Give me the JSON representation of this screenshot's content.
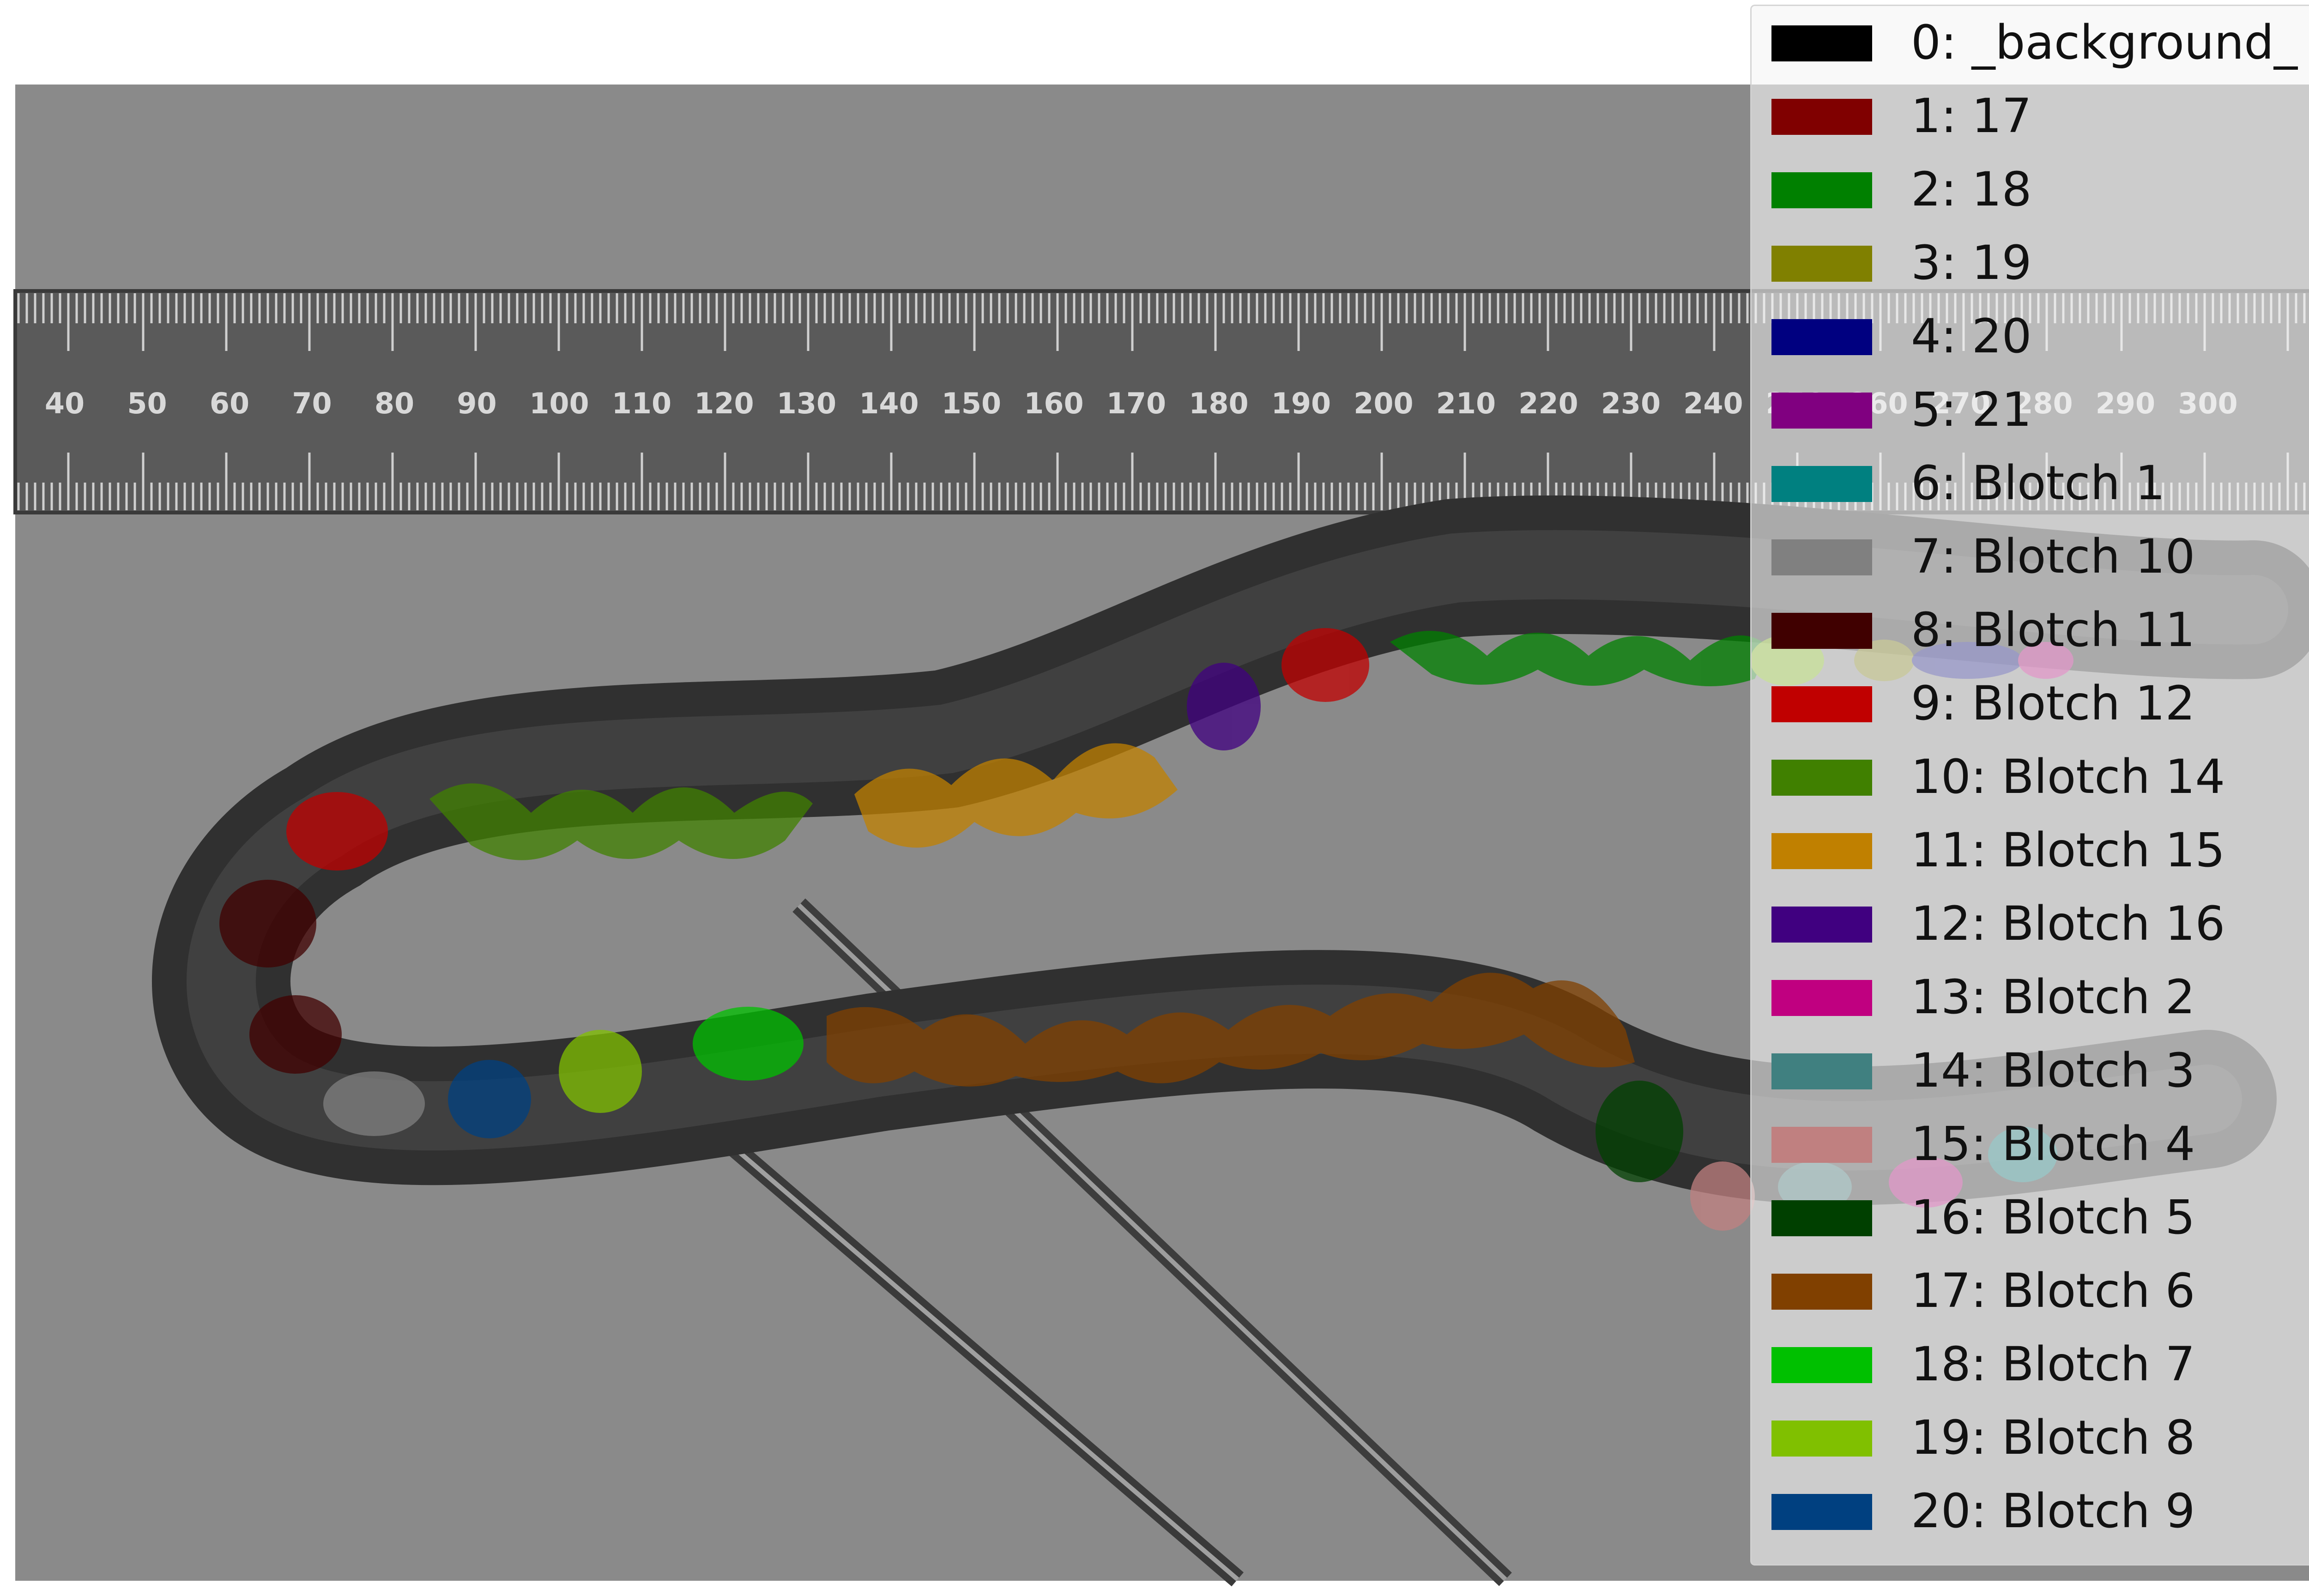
{
  "ruler": {
    "tick_labels": [
      "40",
      "50",
      "60",
      "70",
      "80",
      "90",
      "100",
      "110",
      "120",
      "130",
      "140",
      "150",
      "160",
      "170",
      "180",
      "190",
      "200",
      "210",
      "220",
      "230",
      "240",
      "250",
      "260",
      "270",
      "280",
      "290",
      "300"
    ]
  },
  "legend": {
    "items": [
      {
        "label": "0: _background_",
        "color": "#000000"
      },
      {
        "label": "1: 17",
        "color": "#800000"
      },
      {
        "label": "2: 18",
        "color": "#008000"
      },
      {
        "label": "3: 19",
        "color": "#808000"
      },
      {
        "label": "4: 20",
        "color": "#000080"
      },
      {
        "label": "5: 21",
        "color": "#800080"
      },
      {
        "label": "6: Blotch 1",
        "color": "#008080"
      },
      {
        "label": "7: Blotch 10",
        "color": "#808080"
      },
      {
        "label": "8: Blotch 11",
        "color": "#400000"
      },
      {
        "label": "9: Blotch 12",
        "color": "#c00000"
      },
      {
        "label": "10: Blotch 14",
        "color": "#408000"
      },
      {
        "label": "11: Blotch 15",
        "color": "#c08000"
      },
      {
        "label": "12: Blotch 16",
        "color": "#400080"
      },
      {
        "label": "13: Blotch 2",
        "color": "#c00080"
      },
      {
        "label": "14: Blotch 3",
        "color": "#408080"
      },
      {
        "label": "15: Blotch 4",
        "color": "#c08080"
      },
      {
        "label": "16: Blotch 5",
        "color": "#004000"
      },
      {
        "label": "17: Blotch 6",
        "color": "#804000"
      },
      {
        "label": "18: Blotch 7",
        "color": "#00c000"
      },
      {
        "label": "19: Blotch 8",
        "color": "#80c000"
      },
      {
        "label": "20: Blotch 9",
        "color": "#004080"
      }
    ]
  }
}
